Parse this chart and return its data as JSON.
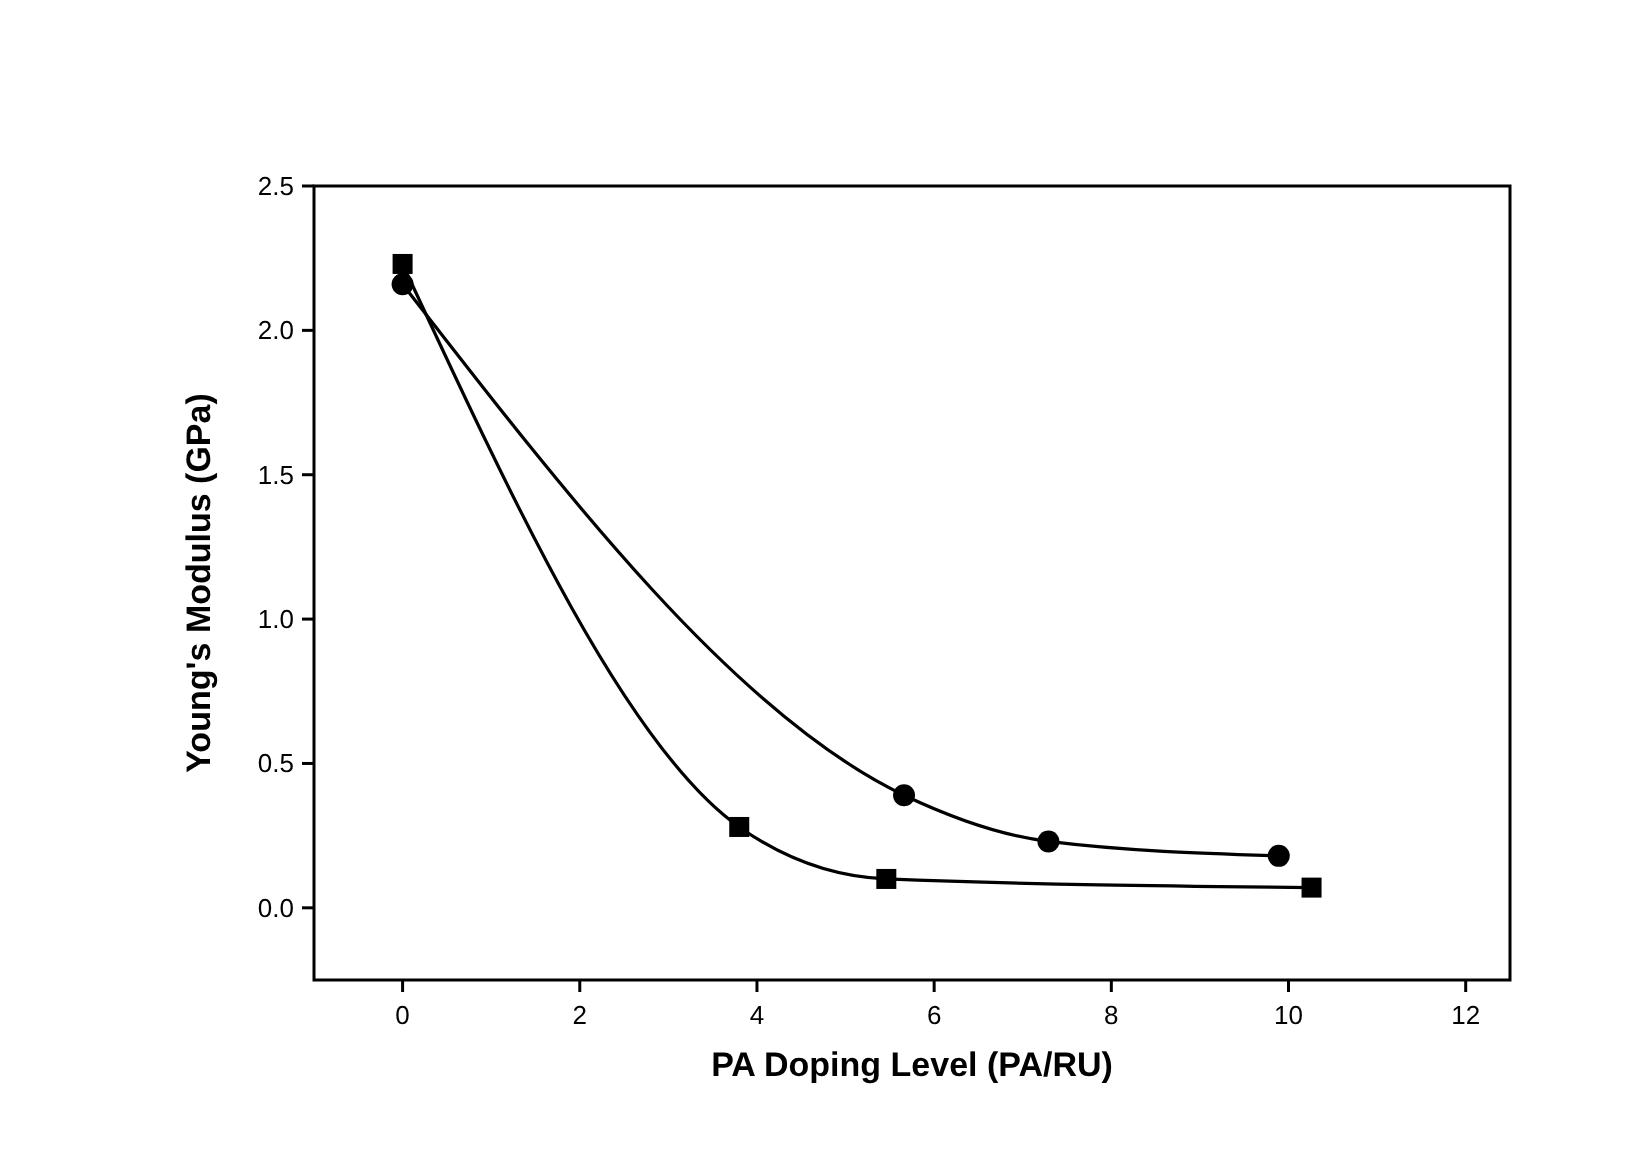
{
  "chart_data": {
    "type": "line",
    "xlabel": "PA Doping Level (PA/RU)",
    "ylabel": "Young's Modulus (GPa)",
    "xlim": [
      -1,
      12.5
    ],
    "ylim": [
      -0.25,
      2.5
    ],
    "xticks": [
      0,
      2,
      4,
      6,
      8,
      10,
      12
    ],
    "yticks": [
      {
        "value": 0,
        "label": "0.0"
      },
      0.5,
      {
        "value": 1,
        "label": "1.0"
      },
      1.5,
      {
        "value": 2,
        "label": "2.0"
      },
      2.5
    ],
    "grid": false,
    "line_style": "solid",
    "series": [
      {
        "color": "#000000",
        "marker": "square",
        "x": [
          0,
          3.8,
          5.46,
          10.26
        ],
        "values": [
          2.23,
          0.28,
          0.1,
          0.07
        ]
      },
      {
        "color": "#000000",
        "marker": "circle",
        "x": [
          0,
          5.66,
          7.29,
          9.89
        ],
        "values": [
          2.16,
          0.39,
          0.23,
          0.18
        ]
      }
    ]
  }
}
